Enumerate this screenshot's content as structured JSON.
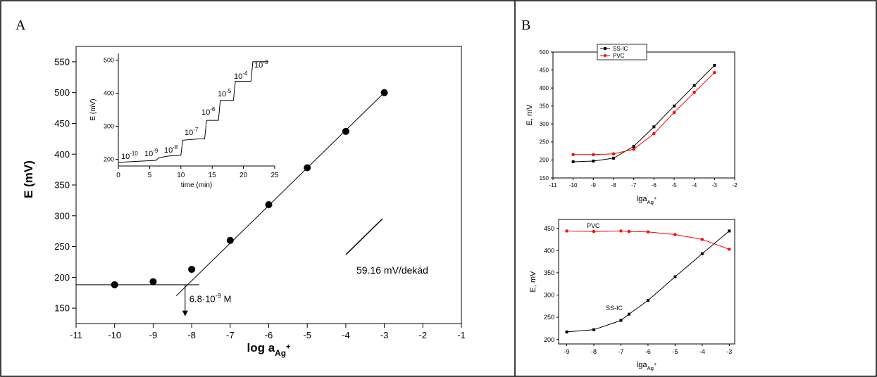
{
  "panels": {
    "left_label": "A",
    "right_label": "B"
  },
  "colors": {
    "black": "#000000",
    "red": "#ff0000",
    "grid": "#000000"
  },
  "chart_data": [
    {
      "id": "A_main",
      "type": "scatter",
      "xlabel": "log a",
      "xlabel_sub": "Ag",
      "xlabel_sup": "+",
      "ylabel": "E (mV)",
      "xlim": [
        -11,
        -1
      ],
      "ylim": [
        125,
        575
      ],
      "xticks": [
        -11,
        -10,
        -9,
        -8,
        -7,
        -6,
        -5,
        -4,
        -3,
        -2,
        -1
      ],
      "yticks": [
        150,
        200,
        250,
        300,
        350,
        400,
        450,
        500,
        550
      ],
      "points": {
        "x": [
          -10,
          -9,
          -8,
          -7,
          -6,
          -5,
          -4,
          -3
        ],
        "y": [
          188,
          193,
          213,
          260,
          318,
          378,
          437,
          500
        ]
      },
      "fit_line": {
        "x": [
          -8.4,
          -3
        ],
        "y": [
          170,
          500
        ]
      },
      "baseline": {
        "x": [
          -11,
          -7.8
        ],
        "y": [
          188,
          188
        ]
      },
      "detection_limit": {
        "x": -8.17,
        "label_base": "6.8·10",
        "label_exp": "-9",
        "label_unit": " M"
      },
      "slope_annotation": {
        "label": "59.16 mV/dekád"
      }
    },
    {
      "id": "A_inset",
      "type": "line",
      "xlabel": "time (min)",
      "ylabel": "E (mV)",
      "xlim": [
        0,
        25
      ],
      "ylim": [
        180,
        520
      ],
      "xticks": [
        0,
        5,
        10,
        15,
        20,
        25
      ],
      "yticks": [
        200,
        300,
        400,
        500
      ],
      "x": [
        0,
        1,
        3,
        5,
        6,
        6.5,
        8,
        10,
        10.3,
        13,
        13.8,
        14.1,
        16,
        16.3,
        18.4,
        18.7,
        21.2,
        21.5,
        24
      ],
      "y": [
        190,
        192,
        194,
        196,
        197,
        205,
        210,
        213,
        258,
        262,
        262,
        318,
        318,
        378,
        378,
        436,
        436,
        495,
        495
      ],
      "step_labels": [
        {
          "base": "10",
          "exp": "-10"
        },
        {
          "base": "10",
          "exp": "-9"
        },
        {
          "base": "10",
          "exp": "-8"
        },
        {
          "base": "10",
          "exp": "-7"
        },
        {
          "base": "10",
          "exp": "-6"
        },
        {
          "base": "10",
          "exp": "-5"
        },
        {
          "base": "10",
          "exp": "-4"
        },
        {
          "base": "10",
          "exp": "-3"
        }
      ]
    },
    {
      "id": "B_top",
      "type": "line",
      "xlabel": "lga",
      "xlabel_sub": "Ag",
      "xlabel_sup": "+",
      "ylabel": "E, mV",
      "xlim": [
        -11,
        -2
      ],
      "ylim": [
        150,
        500
      ],
      "xticks": [
        -11,
        -10,
        -9,
        -8,
        -7,
        -6,
        -5,
        -4,
        -3,
        -2
      ],
      "yticks": [
        150,
        200,
        250,
        300,
        350,
        400,
        450,
        500
      ],
      "legend": [
        "SS-IC",
        "PVC"
      ],
      "legend_position": "top-left",
      "series": [
        {
          "name": "SS-IC",
          "color": "#000000",
          "x": [
            -10,
            -9,
            -8,
            -7,
            -6,
            -5,
            -4,
            -3
          ],
          "y": [
            195,
            197,
            205,
            238,
            292,
            350,
            407,
            463
          ]
        },
        {
          "name": "PVC",
          "color": "#ff0000",
          "x": [
            -10,
            -9,
            -8,
            -7,
            -6,
            -5,
            -4,
            -3
          ],
          "y": [
            215,
            215,
            217,
            230,
            273,
            332,
            388,
            443
          ]
        }
      ]
    },
    {
      "id": "B_bottom",
      "type": "line",
      "xlabel": "lga",
      "xlabel_sub": "Ag",
      "xlabel_sup": "+",
      "ylabel": "E, mV",
      "xlim": [
        -9.3,
        -2.8
      ],
      "ylim": [
        190,
        470
      ],
      "xticks": [
        -9,
        -8,
        -7,
        -6,
        -5,
        -4,
        -3
      ],
      "yticks": [
        200,
        250,
        300,
        350,
        400,
        450
      ],
      "series": [
        {
          "name": "PVC",
          "color": "#ff0000",
          "x": [
            -9,
            -8,
            -7,
            -6.7,
            -6,
            -5,
            -4,
            -3
          ],
          "y": [
            444,
            443,
            444,
            443,
            442,
            436,
            425,
            403
          ]
        },
        {
          "name": "SS-IC",
          "color": "#000000",
          "x": [
            -9,
            -8,
            -7,
            -6.7,
            -6,
            -5,
            -4,
            -3
          ],
          "y": [
            217,
            222,
            243,
            257,
            288,
            341,
            393,
            444
          ]
        }
      ]
    }
  ]
}
